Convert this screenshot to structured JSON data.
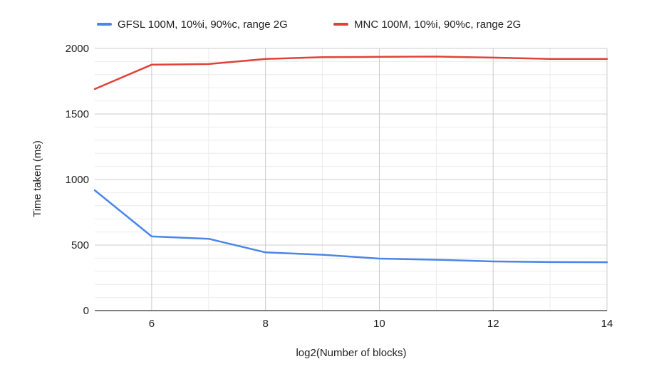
{
  "chart_data": {
    "type": "line",
    "title": "",
    "xlabel": "log2(Number of blocks)",
    "ylabel": "Time taken (ms)",
    "xlim": [
      5,
      14
    ],
    "ylim": [
      0,
      2000
    ],
    "x_ticks": [
      6,
      8,
      10,
      12,
      14
    ],
    "y_ticks": [
      0,
      500,
      1000,
      1500,
      2000
    ],
    "x_minor_gridlines": [
      7,
      9,
      11,
      13
    ],
    "y_minor_step": 100,
    "grid": true,
    "legend_position": "top",
    "x": [
      5,
      6,
      7,
      8,
      9,
      10,
      11,
      12,
      13,
      14
    ],
    "series": [
      {
        "name": "GFSL 100M, 10%i, 90%c, range 2G",
        "color": "#4a86e8",
        "values": [
          918,
          566,
          548,
          444,
          426,
          397,
          388,
          375,
          370,
          369
        ]
      },
      {
        "name": "MNC 100M, 10%i, 90%c, range 2G",
        "color": "#e0413a",
        "values": [
          1690,
          1876,
          1881,
          1920,
          1933,
          1936,
          1938,
          1930,
          1920,
          1920
        ]
      }
    ]
  }
}
